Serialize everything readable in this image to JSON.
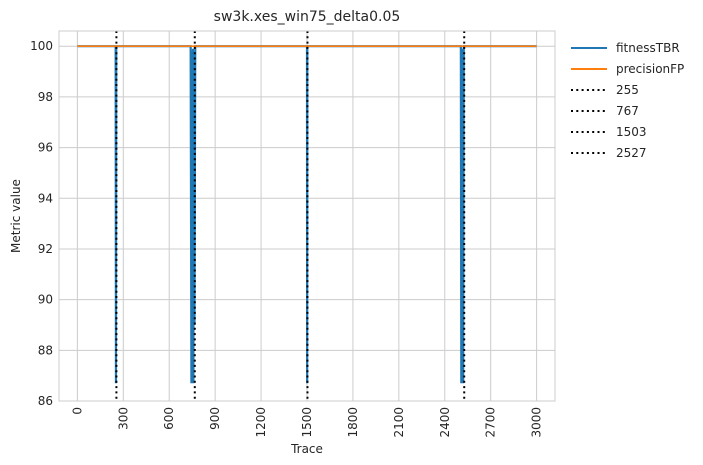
{
  "chart_data": {
    "type": "line",
    "title": "sw3k.xes_win75_delta0.05",
    "xlabel": "Trace",
    "ylabel": "Metric value",
    "xlim": [
      -120,
      3120
    ],
    "ylim": [
      86,
      100.6
    ],
    "x_ticks": [
      0,
      300,
      600,
      900,
      1200,
      1500,
      1800,
      2100,
      2400,
      2700,
      3000
    ],
    "y_ticks": [
      86,
      88,
      90,
      92,
      94,
      96,
      98,
      100
    ],
    "grid": true,
    "legend_position": "outside-top-right",
    "series": [
      {
        "name": "fitnessTBR",
        "color": "#1f77b4",
        "points": [
          [
            0,
            100
          ],
          [
            250,
            100
          ],
          [
            252,
            86.7
          ],
          [
            254,
            99.9
          ],
          [
            256,
            100
          ],
          [
            740,
            100
          ],
          [
            745,
            86.7
          ],
          [
            750,
            99.8
          ],
          [
            752,
            86.7
          ],
          [
            755,
            99.9
          ],
          [
            758,
            86.7
          ],
          [
            760,
            99.7
          ],
          [
            765,
            89.0
          ],
          [
            770,
            100
          ],
          [
            1500,
            100
          ],
          [
            1501,
            86.7
          ],
          [
            1502,
            100
          ],
          [
            2505,
            100
          ],
          [
            2508,
            86.7
          ],
          [
            2512,
            99.9
          ],
          [
            2515,
            88.9
          ],
          [
            2518,
            99.8
          ],
          [
            2520,
            86.7
          ],
          [
            2524,
            100
          ],
          [
            2527,
            100
          ],
          [
            3000,
            100
          ]
        ]
      },
      {
        "name": "precisionFP",
        "color": "#ff7f0e",
        "points": [
          [
            0,
            100
          ],
          [
            3000,
            100
          ]
        ]
      }
    ],
    "vlines": [
      {
        "x": 255,
        "label": "255",
        "color": "#000000",
        "style": "dotted"
      },
      {
        "x": 767,
        "label": "767",
        "color": "#000000",
        "style": "dotted"
      },
      {
        "x": 1503,
        "label": "1503",
        "color": "#000000",
        "style": "dotted"
      },
      {
        "x": 2527,
        "label": "2527",
        "color": "#000000",
        "style": "dotted"
      }
    ]
  }
}
